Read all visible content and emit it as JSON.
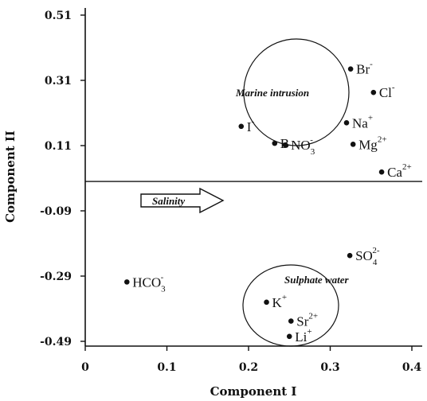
{
  "chart_data": {
    "type": "scatter",
    "xlabel": "Component I",
    "ylabel": "Component II",
    "xlim": [
      -0.01,
      0.41
    ],
    "ylim": [
      -0.51,
      0.53
    ],
    "x_ticks": [
      "0",
      "0.1",
      "0.2",
      "0.3",
      "0.4"
    ],
    "x_tick_values": [
      0,
      0.1,
      0.2,
      0.3,
      0.4
    ],
    "y_ticks": [
      "0.51",
      "0.31",
      "0.11",
      "-0.09",
      "-0.29",
      "-0.49"
    ],
    "y_tick_values": [
      0.51,
      0.31,
      0.11,
      -0.09,
      -0.29,
      -0.49
    ],
    "grid": false,
    "reference_line_y": 0.0,
    "points": [
      {
        "id": "br",
        "label": "Br",
        "sup": "-",
        "sub": "",
        "x": 0.325,
        "y": 0.345
      },
      {
        "id": "cl",
        "label": "Cl",
        "sup": "-",
        "sub": "",
        "x": 0.353,
        "y": 0.273
      },
      {
        "id": "na",
        "label": "Na",
        "sup": "+",
        "sub": "",
        "x": 0.32,
        "y": 0.18
      },
      {
        "id": "mg",
        "label": "Mg",
        "sup": "2+",
        "sub": "",
        "x": 0.328,
        "y": 0.114
      },
      {
        "id": "ca",
        "label": "Ca",
        "sup": "2+",
        "sub": "",
        "x": 0.363,
        "y": 0.029
      },
      {
        "id": "i",
        "label": "I",
        "sup": "-",
        "sub": "",
        "x": 0.191,
        "y": 0.169
      },
      {
        "id": "b",
        "label": "B",
        "sup": "",
        "sub": "",
        "x": 0.232,
        "y": 0.117
      },
      {
        "id": "no3",
        "label": "NO",
        "sup": "-",
        "sub": "3",
        "x": 0.245,
        "y": 0.112
      },
      {
        "id": "so4",
        "label": "SO",
        "sup": "2-",
        "sub": "4",
        "x": 0.324,
        "y": -0.227
      },
      {
        "id": "hco3",
        "label": "HCO",
        "sup": "-",
        "sub": "3",
        "x": 0.051,
        "y": -0.308
      },
      {
        "id": "k",
        "label": "K",
        "sup": "+",
        "sub": "",
        "x": 0.222,
        "y": -0.37
      },
      {
        "id": "sr",
        "label": "Sr",
        "sup": "2+",
        "sub": "",
        "x": 0.252,
        "y": -0.428
      },
      {
        "id": "li",
        "label": "Li",
        "sup": "+",
        "sub": "",
        "x": 0.25,
        "y": -0.475
      }
    ],
    "annotations": {
      "marine": "Marine intrusion",
      "sulphate": "Sulphate water",
      "salinity": "Salinity"
    }
  }
}
